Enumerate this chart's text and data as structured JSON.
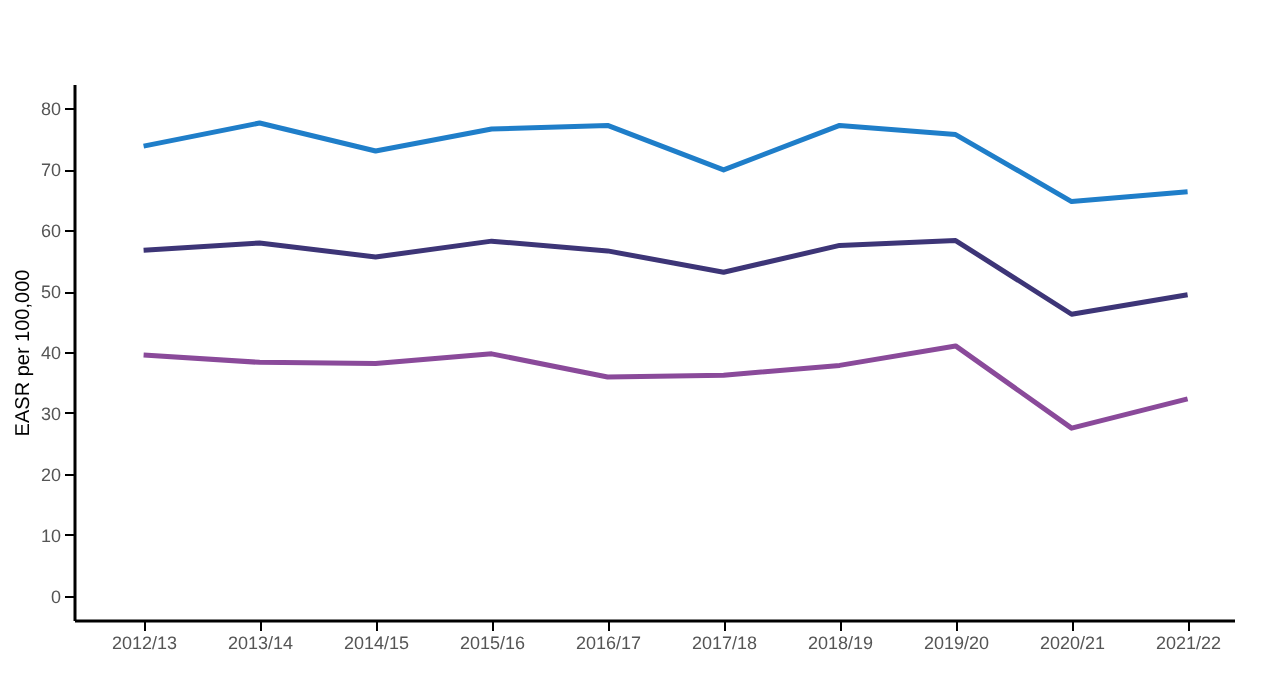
{
  "chart_data": {
    "type": "line",
    "ylabel": "EASR per 100,000",
    "categories": [
      "2012/13",
      "2013/14",
      "2014/15",
      "2015/16",
      "2016/17",
      "2017/18",
      "2018/19",
      "2019/20",
      "2020/21",
      "2021/22"
    ],
    "series": [
      {
        "color": "#1f7ec9",
        "values": [
          73.8,
          77.6,
          73.0,
          76.6,
          77.2,
          69.9,
          77.2,
          75.7,
          64.7,
          66.3
        ]
      },
      {
        "color": "#3d3577",
        "values": [
          56.7,
          57.9,
          55.6,
          58.2,
          56.6,
          53.1,
          57.5,
          58.3,
          46.2,
          49.4
        ]
      },
      {
        "color": "#8a4a9a",
        "values": [
          39.5,
          38.3,
          38.1,
          39.7,
          35.9,
          36.2,
          37.8,
          41.0,
          27.5,
          32.3
        ]
      }
    ],
    "ylim": [
      -4,
      84
    ],
    "yticks": [
      0,
      10,
      20,
      30,
      40,
      50,
      60,
      70,
      80
    ],
    "grid": false,
    "legend": false,
    "line_style": "solid",
    "marker": "none"
  }
}
